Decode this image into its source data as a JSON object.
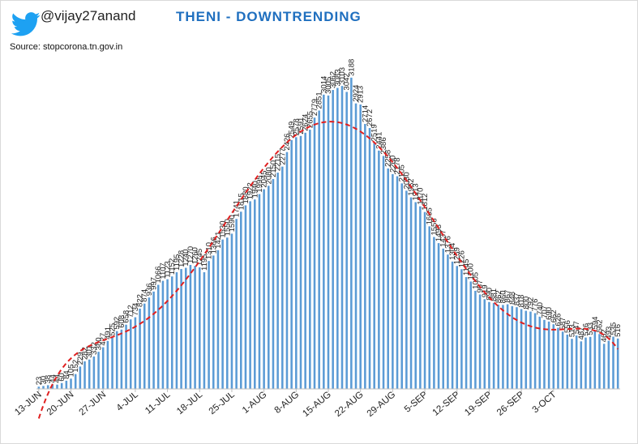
{
  "header": {
    "handle": "@vijay27anand",
    "title": "THENI - DOWNTRENDING",
    "source": "Source: stopcorona.tn.gov.in",
    "twitter_icon_color": "#1da1f2"
  },
  "chart_data": {
    "type": "bar",
    "title": "THENI - DOWNTRENDING",
    "ylim": [
      0,
      3300
    ],
    "grid": false,
    "bar_color": "#5b9bd5",
    "trendline": {
      "type": "polynomial",
      "color": "#e02020",
      "style": "dashed"
    },
    "x_tick_labels": [
      "13-JUN",
      "20-JUN",
      "27-JUN",
      "4-JUL",
      "11-JUL",
      "18-JUL",
      "25-JUL",
      "1-AUG",
      "8-AUG",
      "15-AUG",
      "22-AUG",
      "29-AUG",
      "5-SEP",
      "12-SEP",
      "19-SEP",
      "26-SEP",
      "3-OCT"
    ],
    "values": [
      23,
      30,
      38,
      44,
      44,
      60,
      84,
      105,
      152,
      229,
      282,
      301,
      332,
      380,
      427,
      491,
      525,
      592,
      608,
      658,
      712,
      734,
      822,
      874,
      936,
      997,
      1066,
      1107,
      1123,
      1152,
      1195,
      1228,
      1240,
      1270,
      1260,
      1245,
      1195,
      1310,
      1366,
      1421,
      1530,
      1550,
      1590,
      1741,
      1815,
      1880,
      1922,
      1940,
      1995,
      2045,
      2080,
      2150,
      2215,
      2277,
      2426,
      2549,
      2578,
      2591,
      2624,
      2655,
      2779,
      2851,
      3014,
      3005,
      3062,
      3083,
      3103,
      3042,
      3188,
      2924,
      2913,
      2714,
      2672,
      2519,
      2441,
      2386,
      2258,
      2200,
      2178,
      2105,
      2030,
      1962,
      1913,
      1870,
      1812,
      1665,
      1556,
      1493,
      1437,
      1376,
      1304,
      1259,
      1226,
      1145,
      1100,
      1005,
      967,
      919,
      890,
      881,
      862,
      860,
      867,
      848,
      837,
      818,
      800,
      792,
      776,
      740,
      707,
      690,
      662,
      626,
      587,
      556,
      513,
      547,
      487,
      526,
      533,
      594,
      562,
      462,
      493,
      535,
      516
    ],
    "label_every": 1
  }
}
